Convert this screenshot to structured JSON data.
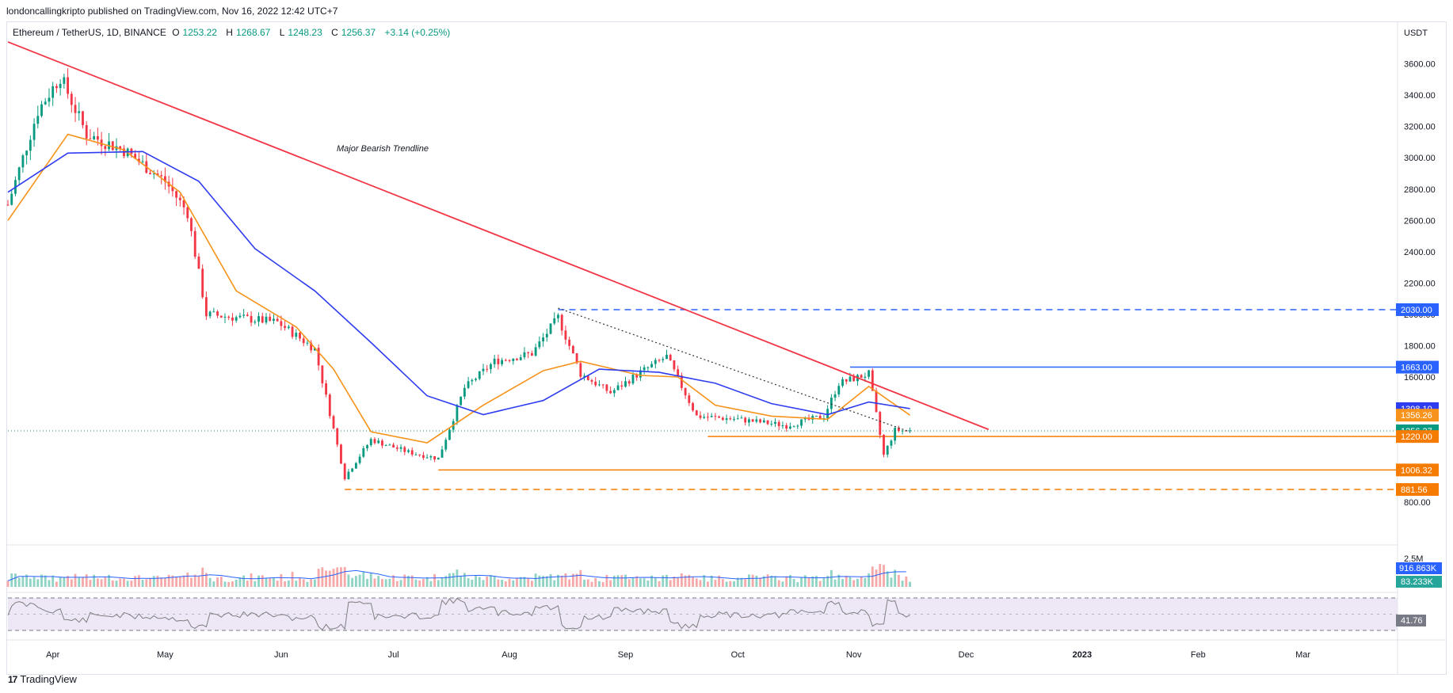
{
  "header": {
    "publish_line": "londoncallingkripto published on TradingView.com, Nov 16, 2022 12:42 UTC+7",
    "symbol": "Ethereum / TetherUS, 1D, BINANCE",
    "o_label": "O",
    "o_value": "1253.22",
    "h_label": "H",
    "h_value": "1268.67",
    "l_label": "L",
    "l_value": "1248.23",
    "c_label": "C",
    "c_value": "1256.37",
    "change": "+3.14 (+0.25%)"
  },
  "footer": {
    "brand": "TradingView",
    "logo_glyph": "17"
  },
  "colors": {
    "trendline": "#f23645",
    "ema": "#f7931a",
    "sma": "#2f3df0",
    "up": "#089981",
    "down": "#f23645",
    "level_blue": "#2962ff",
    "level_orange": "#f57c00",
    "rsi_band": "#ede7f6",
    "rsi_line": "#7e7e7e"
  },
  "chart_data": {
    "type": "candlestick",
    "title": "Ethereum / TetherUS, 1D, BINANCE",
    "currency_label": "USDT",
    "y_ticks": [
      "3600.00",
      "3400.00",
      "3200.00",
      "3000.00",
      "2800.00",
      "2600.00",
      "2400.00",
      "2200.00",
      "2000.00",
      "1800.00",
      "1600.00",
      "1400.00",
      "1200.00",
      "1000.00",
      "800.00"
    ],
    "ylim": [
      720,
      3780
    ],
    "x_ticks": [
      "Apr",
      "May",
      "Jun",
      "Jul",
      "Aug",
      "Sep",
      "Oct",
      "Nov",
      "Dec",
      "2023",
      "Feb",
      "Mar"
    ],
    "x_tick_dates": [
      "2022-04-01",
      "2022-05-01",
      "2022-06-01",
      "2022-07-01",
      "2022-08-01",
      "2022-09-01",
      "2022-10-01",
      "2022-11-01",
      "2022-12-01",
      "2023-01-01",
      "2023-02-01",
      "2023-03-01"
    ],
    "x_range": [
      "2022-03-20",
      "2023-03-25"
    ],
    "ohlc_key_points": [
      {
        "date": "2022-03-20",
        "price": 2700
      },
      {
        "date": "2022-03-28",
        "price": 3300
      },
      {
        "date": "2022-04-03",
        "price": 3520
      },
      {
        "date": "2022-04-10",
        "price": 3150
      },
      {
        "date": "2022-04-20",
        "price": 3050
      },
      {
        "date": "2022-05-01",
        "price": 2850
      },
      {
        "date": "2022-05-07",
        "price": 2650
      },
      {
        "date": "2022-05-12",
        "price": 2000
      },
      {
        "date": "2022-05-20",
        "price": 1980
      },
      {
        "date": "2022-05-31",
        "price": 1950
      },
      {
        "date": "2022-06-10",
        "price": 1780
      },
      {
        "date": "2022-06-18",
        "price": 960
      },
      {
        "date": "2022-06-25",
        "price": 1200
      },
      {
        "date": "2022-07-05",
        "price": 1120
      },
      {
        "date": "2022-07-13",
        "price": 1080
      },
      {
        "date": "2022-07-20",
        "price": 1530
      },
      {
        "date": "2022-07-28",
        "price": 1700
      },
      {
        "date": "2022-08-07",
        "price": 1750
      },
      {
        "date": "2022-08-14",
        "price": 1980
      },
      {
        "date": "2022-08-20",
        "price": 1620
      },
      {
        "date": "2022-08-28",
        "price": 1500
      },
      {
        "date": "2022-09-05",
        "price": 1630
      },
      {
        "date": "2022-09-12",
        "price": 1730
      },
      {
        "date": "2022-09-20",
        "price": 1350
      },
      {
        "date": "2022-10-01",
        "price": 1330
      },
      {
        "date": "2022-10-14",
        "price": 1290
      },
      {
        "date": "2022-10-24",
        "price": 1350
      },
      {
        "date": "2022-10-28",
        "price": 1560
      },
      {
        "date": "2022-11-05",
        "price": 1620
      },
      {
        "date": "2022-11-09",
        "price": 1100
      },
      {
        "date": "2022-11-12",
        "price": 1260
      },
      {
        "date": "2022-11-16",
        "price": 1256
      }
    ],
    "indicators": [
      {
        "name": "EMA",
        "color": "#f7931a",
        "points": [
          {
            "date": "2022-03-20",
            "price": 2600
          },
          {
            "date": "2022-04-05",
            "price": 3150
          },
          {
            "date": "2022-04-20",
            "price": 3050
          },
          {
            "date": "2022-05-05",
            "price": 2780
          },
          {
            "date": "2022-05-20",
            "price": 2150
          },
          {
            "date": "2022-06-05",
            "price": 1920
          },
          {
            "date": "2022-06-15",
            "price": 1650
          },
          {
            "date": "2022-06-25",
            "price": 1250
          },
          {
            "date": "2022-07-10",
            "price": 1180
          },
          {
            "date": "2022-07-25",
            "price": 1420
          },
          {
            "date": "2022-08-10",
            "price": 1640
          },
          {
            "date": "2022-08-20",
            "price": 1700
          },
          {
            "date": "2022-09-05",
            "price": 1610
          },
          {
            "date": "2022-09-15",
            "price": 1600
          },
          {
            "date": "2022-09-25",
            "price": 1420
          },
          {
            "date": "2022-10-10",
            "price": 1350
          },
          {
            "date": "2022-10-25",
            "price": 1330
          },
          {
            "date": "2022-11-05",
            "price": 1540
          },
          {
            "date": "2022-11-16",
            "price": 1356.26
          }
        ]
      },
      {
        "name": "SMA",
        "color": "#2f3df0",
        "points": [
          {
            "date": "2022-03-20",
            "price": 2780
          },
          {
            "date": "2022-04-05",
            "price": 3030
          },
          {
            "date": "2022-04-25",
            "price": 3040
          },
          {
            "date": "2022-05-10",
            "price": 2850
          },
          {
            "date": "2022-05-25",
            "price": 2420
          },
          {
            "date": "2022-06-10",
            "price": 2150
          },
          {
            "date": "2022-06-25",
            "price": 1820
          },
          {
            "date": "2022-07-10",
            "price": 1480
          },
          {
            "date": "2022-07-25",
            "price": 1360
          },
          {
            "date": "2022-08-10",
            "price": 1450
          },
          {
            "date": "2022-08-25",
            "price": 1650
          },
          {
            "date": "2022-09-10",
            "price": 1630
          },
          {
            "date": "2022-09-25",
            "price": 1560
          },
          {
            "date": "2022-10-10",
            "price": 1430
          },
          {
            "date": "2022-10-25",
            "price": 1360
          },
          {
            "date": "2022-11-05",
            "price": 1440
          },
          {
            "date": "2022-11-16",
            "price": 1398.1
          }
        ]
      }
    ],
    "annotations": [
      {
        "text": "Major Bearish Trendline"
      }
    ],
    "trendline": {
      "from": {
        "date": "2022-03-20",
        "price": 3740
      },
      "to": {
        "date": "2022-12-07",
        "price": 1265
      }
    },
    "dotted_trendline": {
      "from": {
        "date": "2022-08-14",
        "price": 2040
      },
      "to": {
        "date": "2022-11-16",
        "price": 1250
      }
    },
    "price_levels": [
      {
        "value": 2030.0,
        "label": "2030.00",
        "color": "#2962ff",
        "dashed": true,
        "from": "2022-08-14"
      },
      {
        "value": 1663.0,
        "label": "1663.00",
        "color": "#2962ff",
        "dashed": false,
        "from": "2022-10-31"
      },
      {
        "value": 1398.1,
        "label": "1398.10",
        "color": "#2f3df0",
        "marker_only": true
      },
      {
        "value": 1356.26,
        "label": "1356.26",
        "color": "#f7931a",
        "marker_only": true
      },
      {
        "value": 1256.37,
        "label": "1256.37",
        "color": "#089981",
        "marker_only": true
      },
      {
        "value": 1220.0,
        "label": "1220.00",
        "color": "#f57c00",
        "dashed": false,
        "from": "2022-09-23"
      },
      {
        "value": 1006.32,
        "label": "1006.32",
        "color": "#f57c00",
        "dashed": false,
        "from": "2022-07-13"
      },
      {
        "value": 881.56,
        "label": "881.56",
        "color": "#f57c00",
        "dashed": true,
        "from": "2022-06-18"
      }
    ],
    "volume": {
      "axis_label": "2.5M",
      "ma_label": "916.863K",
      "last_label": "83.233K"
    },
    "rsi": {
      "last_label": "41.76"
    }
  }
}
